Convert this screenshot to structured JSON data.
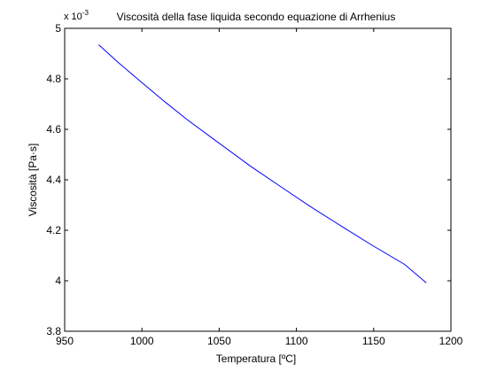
{
  "chart_data": {
    "type": "line",
    "title": "Viscosità della fase liquida secondo equazione di Arrhenius",
    "xlabel": "Temperatura [ºC]",
    "ylabel": "Viscosità [Pa·s]",
    "y_exponent_label": "x 10",
    "y_exponent_power": "-3",
    "xlim": [
      950,
      1200
    ],
    "ylim": [
      3.8,
      5.0
    ],
    "y_scale_factor": 0.001,
    "xticks": [
      950,
      1000,
      1050,
      1100,
      1150,
      1200
    ],
    "xtick_labels": [
      "950",
      "1000",
      "1050",
      "1100",
      "1150",
      "1200"
    ],
    "yticks": [
      3.8,
      4.0,
      4.2,
      4.4,
      4.6,
      4.8,
      5.0
    ],
    "ytick_labels": [
      "3.8",
      "4",
      "4.2",
      "4.4",
      "4.6",
      "4.8",
      "5"
    ],
    "grid": false,
    "series": [
      {
        "color": "#0000ff",
        "x": [
          972,
          985,
          1000,
          1015,
          1030,
          1050,
          1070,
          1090,
          1110,
          1130,
          1150,
          1170,
          1184
        ],
        "y": [
          4.935,
          4.863,
          4.785,
          4.708,
          4.635,
          4.545,
          4.455,
          4.372,
          4.29,
          4.213,
          4.137,
          4.065,
          3.992
        ]
      }
    ]
  }
}
